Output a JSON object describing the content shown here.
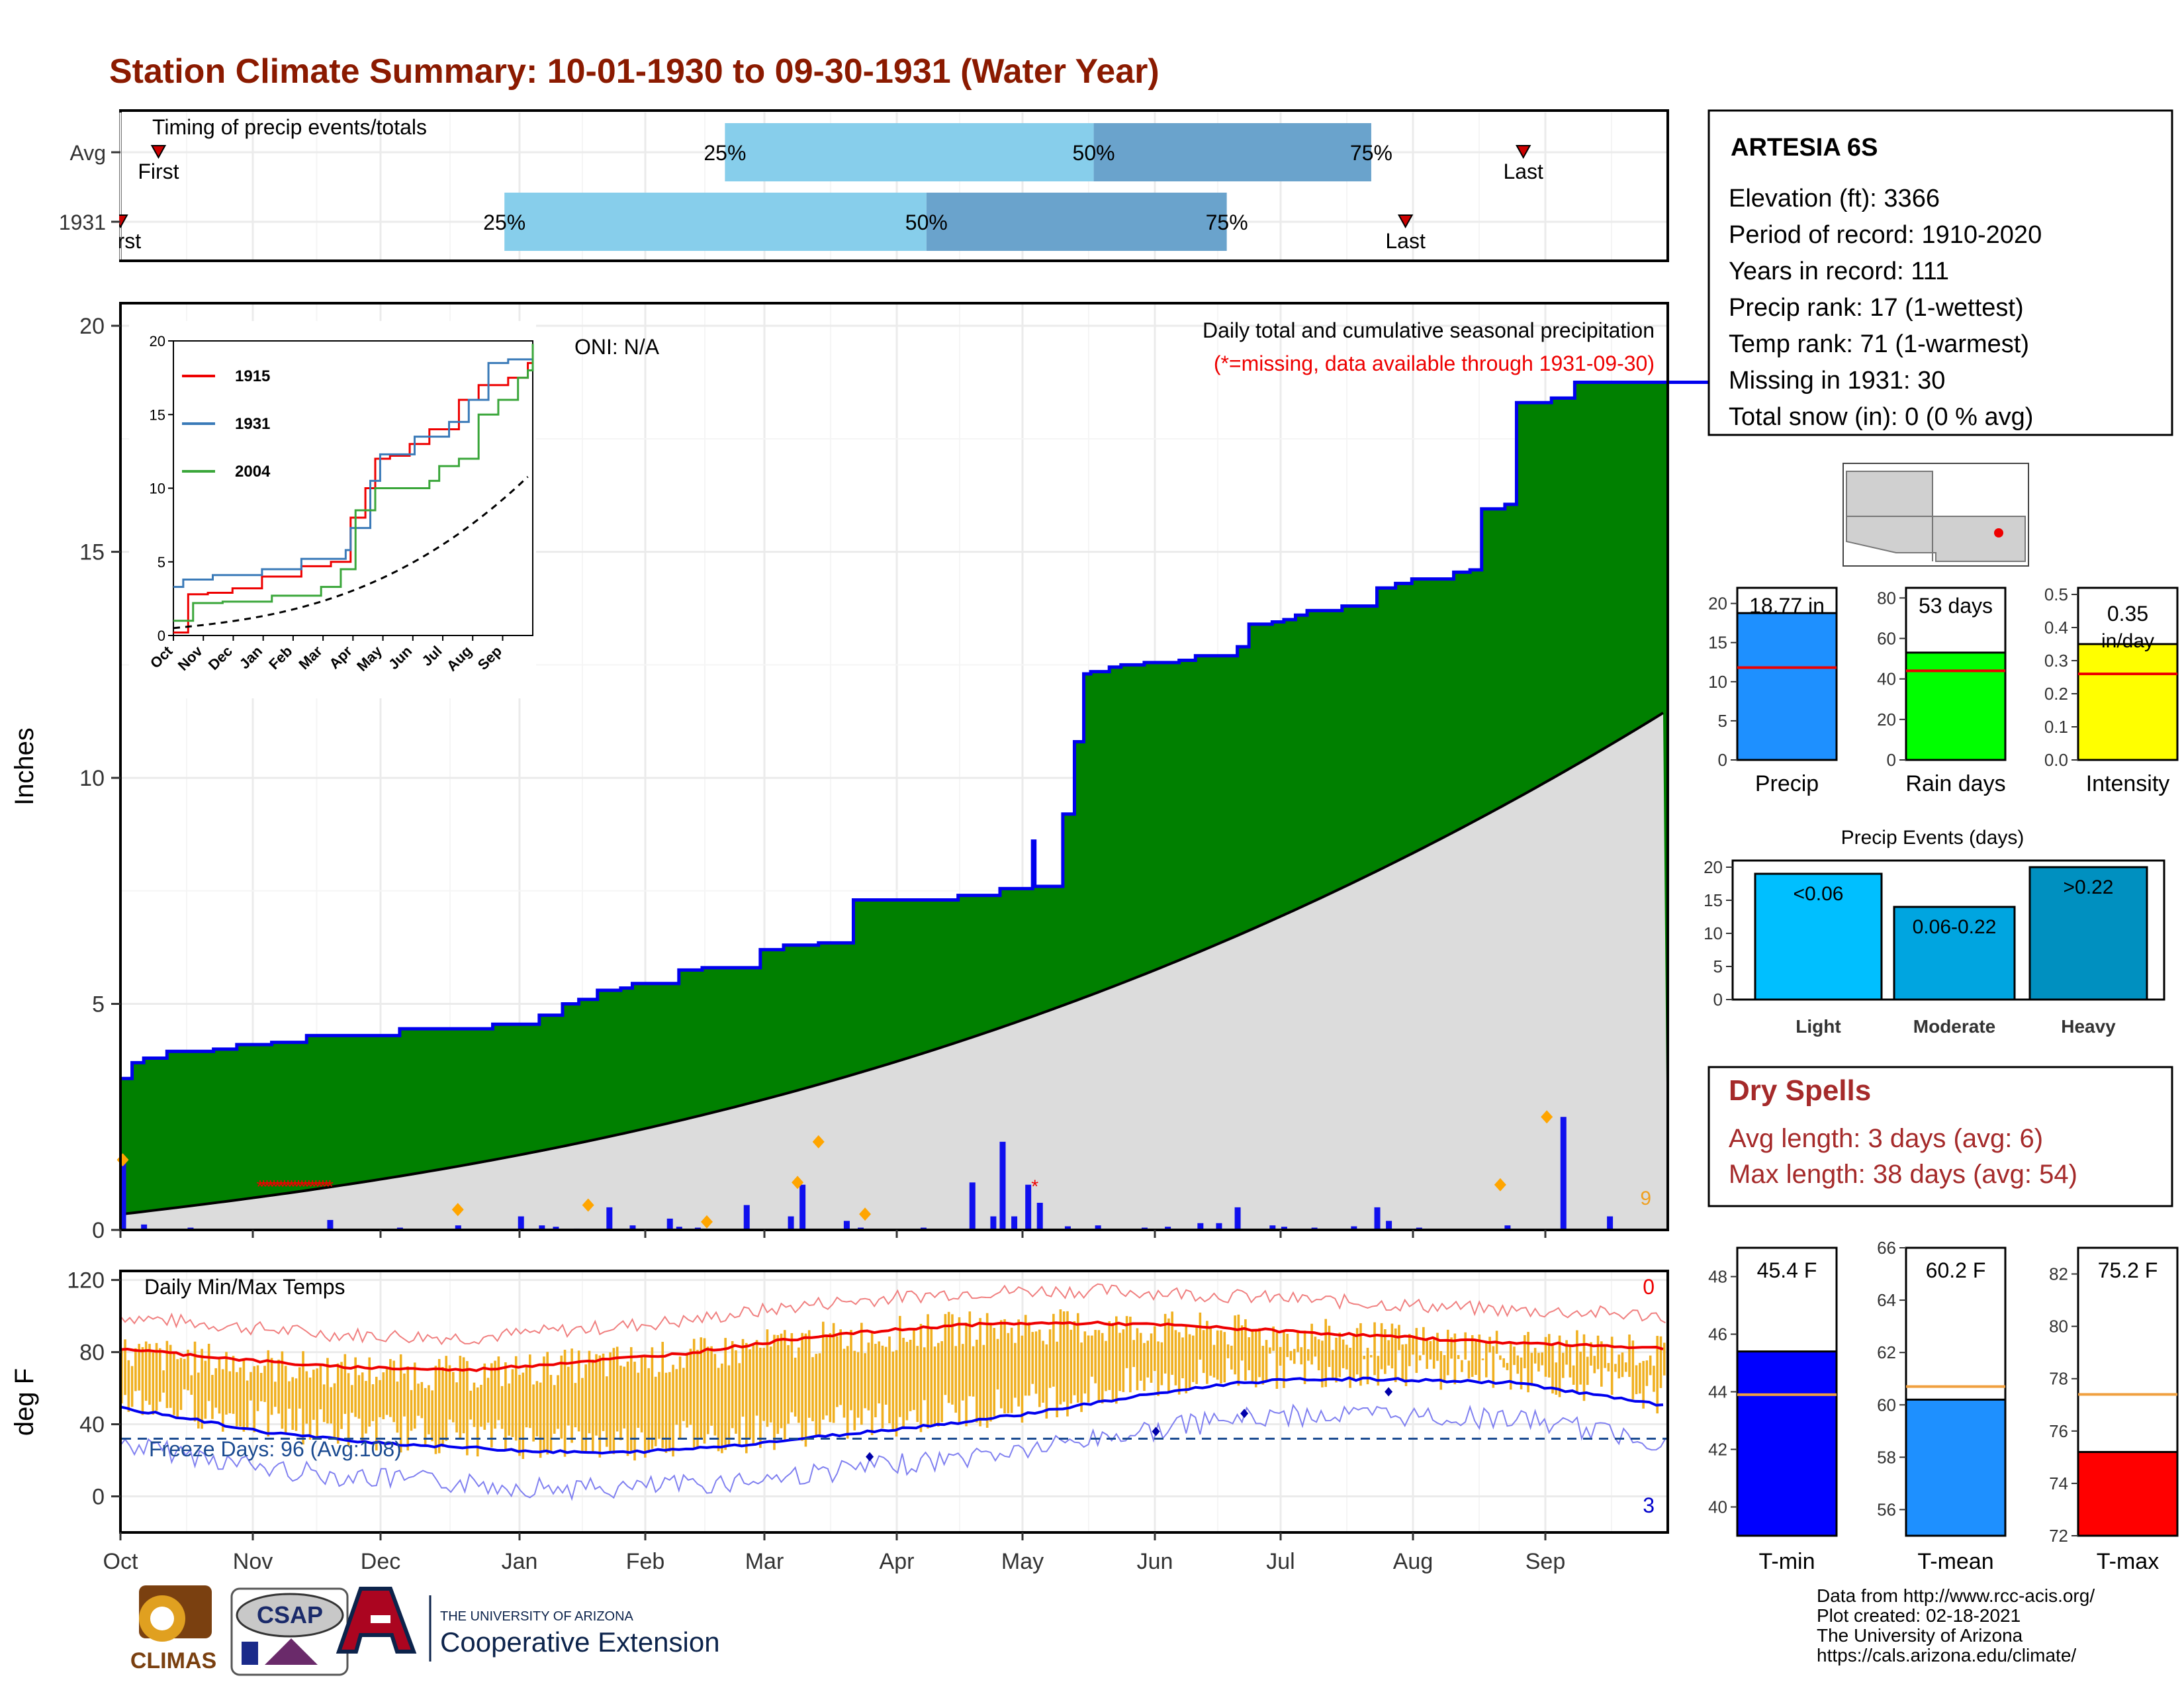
{
  "title": "Station Climate Summary: 10-01-1930 to 09-30-1931 (Water Year)",
  "colors": {
    "title": "#8b1a00",
    "green": "#008000",
    "blue": "#0000ee",
    "gray": "#dcdcdc",
    "orange": "#f0b020",
    "red": "#ee0000",
    "light_blue": "#87ceeb",
    "mid_blue": "#6aa3cc",
    "dry_red": "#a52a2a"
  },
  "timing": {
    "label": "Timing of precip events/totals",
    "rows": [
      {
        "name": "Avg",
        "first_label": "First",
        "last_label": "Last",
        "q_labels": [
          "25%",
          "50%",
          "75%"
        ],
        "first_day": 10,
        "q25": 159,
        "q50": 256,
        "q75": 329,
        "last_day": 369
      },
      {
        "name": "1931",
        "first_label": "First",
        "last_label": "Last",
        "q_labels": [
          "25%",
          "50%",
          "75%"
        ],
        "first_day": 0,
        "q25": 101,
        "q50": 212,
        "q75": 291,
        "last_day": 338
      }
    ]
  },
  "main_chart": {
    "ylabel": "Inches",
    "y_ticks": [
      0,
      5,
      10,
      15,
      20
    ],
    "ylim": [
      0,
      20.5
    ],
    "title_line1": "Daily total and cumulative seasonal precipitation",
    "title_line2": "(*=missing, data available through 1931-09-30)",
    "oni": "ONI: N/A",
    "count_label": "9",
    "cum_1931_steps": [
      [
        0,
        3.35
      ],
      [
        5,
        3.7
      ],
      [
        10,
        3.8
      ],
      [
        20,
        3.95
      ],
      [
        40,
        4.0
      ],
      [
        50,
        4.1
      ],
      [
        65,
        4.15
      ],
      [
        80,
        4.3
      ],
      [
        120,
        4.45
      ],
      [
        160,
        4.55
      ],
      [
        180,
        4.75
      ],
      [
        190,
        5.0
      ],
      [
        197,
        5.1
      ],
      [
        205,
        5.3
      ],
      [
        215,
        5.35
      ],
      [
        220,
        5.45
      ],
      [
        240,
        5.75
      ],
      [
        250,
        5.8
      ],
      [
        275,
        6.2
      ],
      [
        285,
        6.3
      ],
      [
        300,
        6.35
      ],
      [
        315,
        7.3
      ],
      [
        350,
        7.3
      ],
      [
        360,
        7.4
      ],
      [
        378,
        7.55
      ],
      [
        390,
        7.55
      ],
      [
        393,
        7.6
      ],
      [
        392,
        8.6
      ],
      [
        405,
        9.2
      ],
      [
        410,
        10.8
      ],
      [
        414,
        12.3
      ],
      [
        417,
        12.35
      ],
      [
        425,
        12.45
      ],
      [
        430,
        12.5
      ],
      [
        440,
        12.55
      ],
      [
        455,
        12.6
      ],
      [
        462,
        12.7
      ],
      [
        480,
        12.9
      ],
      [
        485,
        13.4
      ],
      [
        495,
        13.45
      ],
      [
        500,
        13.5
      ],
      [
        505,
        13.6
      ],
      [
        510,
        13.7
      ],
      [
        525,
        13.8
      ],
      [
        540,
        14.2
      ],
      [
        548,
        14.3
      ],
      [
        555,
        14.4
      ],
      [
        573,
        14.55
      ],
      [
        580,
        14.6
      ],
      [
        585,
        15.95
      ],
      [
        595,
        16.05
      ],
      [
        600,
        18.3
      ],
      [
        615,
        18.4
      ],
      [
        625,
        18.75
      ],
      [
        700,
        18.75
      ]
    ],
    "normal_end": 11.5,
    "missing_days": [
      60,
      90
    ],
    "daily_bars": [
      [
        1,
        1.55
      ],
      [
        10,
        0.12
      ],
      [
        30,
        0.05
      ],
      [
        60,
        0.02
      ],
      [
        90,
        0.22
      ],
      [
        120,
        0.05
      ],
      [
        145,
        0.1
      ],
      [
        172,
        0.3
      ],
      [
        181,
        0.1
      ],
      [
        187,
        0.07
      ],
      [
        196,
        0.03
      ],
      [
        210,
        0.5
      ],
      [
        220,
        0.1
      ],
      [
        236,
        0.25
      ],
      [
        240,
        0.07
      ],
      [
        248,
        0.05
      ],
      [
        260,
        0.01
      ],
      [
        269,
        0.55
      ],
      [
        288,
        0.3
      ],
      [
        293,
        1.0
      ],
      [
        312,
        0.2
      ],
      [
        318,
        0.05
      ],
      [
        330,
        0.02
      ],
      [
        345,
        0.05
      ],
      [
        366,
        1.05
      ],
      [
        375,
        0.3
      ],
      [
        379,
        1.95
      ],
      [
        384,
        0.3
      ],
      [
        390,
        1.0
      ],
      [
        395,
        0.6
      ],
      [
        407,
        0.08
      ],
      [
        420,
        0.1
      ],
      [
        440,
        0.05
      ],
      [
        450,
        0.07
      ],
      [
        464,
        0.15
      ],
      [
        472,
        0.15
      ],
      [
        480,
        0.5
      ],
      [
        495,
        0.1
      ],
      [
        500,
        0.07
      ],
      [
        513,
        0.05
      ],
      [
        530,
        0.08
      ],
      [
        540,
        0.5
      ],
      [
        545,
        0.2
      ],
      [
        558,
        0.05
      ],
      [
        575,
        0.02
      ],
      [
        596,
        0.1
      ],
      [
        620,
        2.5
      ],
      [
        640,
        0.3
      ]
    ],
    "event_days": {
      "orange_markers": [
        [
          1,
          1.55
        ],
        [
          145,
          0.45
        ],
        [
          201,
          0.55
        ],
        [
          252,
          0.18
        ],
        [
          291,
          1.05
        ],
        [
          300,
          1.95
        ],
        [
          320,
          0.35
        ],
        [
          593,
          1.0
        ],
        [
          613,
          2.5
        ]
      ],
      "red_marker": [
        393,
        1.0
      ]
    }
  },
  "inset": {
    "series": [
      {
        "name": "1915",
        "color": "#ee0000"
      },
      {
        "name": "1931",
        "color": "#3a7ab8"
      },
      {
        "name": "2004",
        "color": "#3aa63a"
      }
    ],
    "x_ticks": [
      "Oct",
      "Nov",
      "Dec",
      "Jan",
      "Feb",
      "Mar",
      "Apr",
      "May",
      "Jun",
      "Jul",
      "Aug",
      "Sep"
    ],
    "y_ticks": [
      0,
      5,
      10,
      15,
      20
    ]
  },
  "temp_chart": {
    "ylabel": "deg F",
    "title": "Daily Min/Max Temps",
    "y_ticks": [
      0,
      40,
      80,
      120
    ],
    "ylim": [
      -20,
      125
    ],
    "freeze_label": "Freeze Days: 96 (Avg:108)",
    "freeze_line": 32,
    "count_top": "0",
    "count_bottom": "3",
    "avg_max": [
      [
        0,
        82
      ],
      [
        60,
        75
      ],
      [
        90,
        72
      ],
      [
        120,
        71
      ],
      [
        150,
        70
      ],
      [
        180,
        73
      ],
      [
        210,
        76
      ],
      [
        240,
        79
      ],
      [
        270,
        84
      ],
      [
        300,
        89
      ],
      [
        330,
        92
      ],
      [
        360,
        95
      ],
      [
        390,
        96
      ],
      [
        420,
        96
      ],
      [
        450,
        95
      ],
      [
        480,
        93
      ],
      [
        510,
        91
      ],
      [
        540,
        89
      ],
      [
        570,
        87
      ],
      [
        600,
        85
      ],
      [
        630,
        84
      ],
      [
        665,
        82
      ]
    ],
    "avg_min": [
      [
        0,
        49
      ],
      [
        30,
        43
      ],
      [
        60,
        36
      ],
      [
        90,
        32
      ],
      [
        120,
        29
      ],
      [
        150,
        27
      ],
      [
        180,
        25
      ],
      [
        210,
        24
      ],
      [
        240,
        26
      ],
      [
        270,
        29
      ],
      [
        300,
        33
      ],
      [
        330,
        37
      ],
      [
        360,
        41
      ],
      [
        390,
        46
      ],
      [
        420,
        52
      ],
      [
        450,
        58
      ],
      [
        480,
        63
      ],
      [
        510,
        65
      ],
      [
        540,
        65
      ],
      [
        570,
        64
      ],
      [
        600,
        63
      ],
      [
        630,
        57
      ],
      [
        665,
        50
      ]
    ]
  },
  "x_months": [
    "Oct",
    "Nov",
    "Dec",
    "Jan",
    "Feb",
    "Mar",
    "Apr",
    "May",
    "Jun",
    "Jul",
    "Aug",
    "Sep"
  ],
  "station": {
    "name": "ARTESIA 6S",
    "lines": [
      "Elevation (ft): 3366",
      "Period of record: 1910-2020",
      "Years in record: 111",
      "Precip rank: 17 (1-wettest)",
      "Temp rank: 71 (1-warmest)",
      "Missing in 1931: 30",
      "Total snow (in): 0 (0 % avg)"
    ]
  },
  "summary_bars": [
    {
      "name": "Precip",
      "value": 18.77,
      "label": "18.77 in",
      "ymax": 22,
      "ticks": [
        0,
        5,
        10,
        15,
        20
      ],
      "normal": 11.8,
      "color": "#1e90ff"
    },
    {
      "name": "Rain days",
      "value": 53,
      "label": "53 days",
      "ymax": 85,
      "ticks": [
        0,
        20,
        40,
        60,
        80
      ],
      "normal": 44,
      "color": "#00ff00"
    },
    {
      "name": "Intensity",
      "value": 0.35,
      "label": "0.35",
      "label2": "in/day",
      "ymax": 0.52,
      "ticks": [
        "0.0",
        "0.1",
        "0.2",
        "0.3",
        "0.4",
        "0.5"
      ],
      "normal": 0.26,
      "color": "#ffff00"
    }
  ],
  "precip_events": {
    "title": "Precip Events (days)",
    "y_ticks": [
      0,
      5,
      10,
      15,
      20
    ],
    "bars": [
      {
        "name": "Light",
        "value": 19,
        "label": "<0.06",
        "color": "#00bfff"
      },
      {
        "name": "Moderate",
        "value": 14,
        "label": "0.06-0.22",
        "color": "#00a5e0"
      },
      {
        "name": "Heavy",
        "value": 20,
        "label": ">0.22",
        "color": "#0090c0"
      }
    ]
  },
  "dry_spells": {
    "title": "Dry Spells",
    "line1": "Avg length: 3 days (avg: 6)",
    "line2": "Max length: 38 days (avg: 54)"
  },
  "temp_bars": [
    {
      "name": "T-min",
      "label": "45.4 F",
      "value": 45.4,
      "ymin": 39,
      "ymax": 49,
      "ticks": [
        40,
        42,
        44,
        46,
        48
      ],
      "normal": 43.9,
      "color": "#0000ff"
    },
    {
      "name": "T-mean",
      "label": "60.2 F",
      "value": 60.2,
      "ymin": 55,
      "ymax": 66,
      "ticks": [
        56,
        58,
        60,
        62,
        64,
        66
      ],
      "normal": 60.7,
      "color": "#1e90ff"
    },
    {
      "name": "T-max",
      "label": "75.2 F",
      "value": 75.2,
      "ymin": 72,
      "ymax": 83,
      "ticks": [
        72,
        74,
        76,
        78,
        80,
        82
      ],
      "normal": 77.4,
      "color": "#ff0000"
    }
  ],
  "footer": {
    "lines": [
      "Data from http://www.rcc-acis.org/",
      "Plot created: 02-18-2021",
      "The University of Arizona",
      "https://cals.arizona.edu/climate/"
    ],
    "logos": {
      "climas": "CLIMAS",
      "csap": "CSAP",
      "ua_small": "THE UNIVERSITY OF ARIZONA",
      "ua_big": "Cooperative Extension"
    }
  }
}
